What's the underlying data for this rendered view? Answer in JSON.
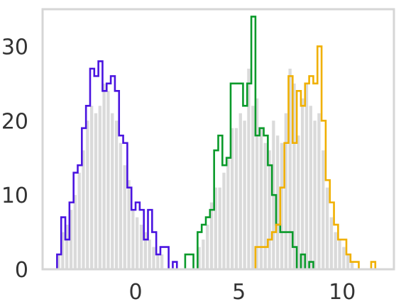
{
  "chart_data": {
    "type": "histogram",
    "title": "",
    "xlabel": "",
    "ylabel": "",
    "xlim": [
      -4.5,
      12.5
    ],
    "ylim": [
      0,
      35
    ],
    "grid": false,
    "x_ticks": [
      0,
      5,
      10
    ],
    "x_tick_labels": [
      "0",
      "5",
      "10"
    ],
    "y_ticks": [
      0,
      10,
      20,
      30
    ],
    "y_tick_labels": [
      "0",
      "10",
      "20",
      "30"
    ],
    "series": [
      {
        "color": "#4a14e0",
        "style": "step-outline",
        "bins": [
          [
            -3.8,
            -3.6,
            2
          ],
          [
            -3.6,
            -3.4,
            7
          ],
          [
            -3.4,
            -3.2,
            4
          ],
          [
            -3.2,
            -3.0,
            9
          ],
          [
            -3.0,
            -2.8,
            13
          ],
          [
            -2.8,
            -2.6,
            14
          ],
          [
            -2.6,
            -2.4,
            19
          ],
          [
            -2.4,
            -2.2,
            22
          ],
          [
            -2.2,
            -2.0,
            27
          ],
          [
            -2.0,
            -1.8,
            26
          ],
          [
            -1.8,
            -1.6,
            28
          ],
          [
            -1.6,
            -1.4,
            24
          ],
          [
            -1.4,
            -1.2,
            25
          ],
          [
            -1.2,
            -1.0,
            26
          ],
          [
            -1.0,
            -0.8,
            24
          ],
          [
            -0.8,
            -0.6,
            18
          ],
          [
            -0.6,
            -0.4,
            17
          ],
          [
            -0.4,
            -0.2,
            11
          ],
          [
            -0.2,
            0.0,
            8
          ],
          [
            0.0,
            0.2,
            9
          ],
          [
            0.2,
            0.4,
            8
          ],
          [
            0.4,
            0.6,
            4
          ],
          [
            0.6,
            0.8,
            8
          ],
          [
            0.8,
            1.0,
            5
          ],
          [
            1.0,
            1.2,
            2
          ],
          [
            1.2,
            1.4,
            3
          ],
          [
            1.4,
            1.6,
            3
          ],
          [
            1.6,
            1.8,
            0
          ],
          [
            1.8,
            2.0,
            1
          ]
        ]
      },
      {
        "color": "#0a9a2a",
        "style": "step-outline",
        "bins": [
          [
            2.4,
            2.6,
            2
          ],
          [
            2.6,
            2.8,
            2
          ],
          [
            2.8,
            3.0,
            0
          ],
          [
            3.0,
            3.2,
            5
          ],
          [
            3.2,
            3.4,
            6
          ],
          [
            3.4,
            3.6,
            7
          ],
          [
            3.6,
            3.8,
            8
          ],
          [
            3.8,
            4.0,
            16
          ],
          [
            4.0,
            4.2,
            18
          ],
          [
            4.2,
            4.4,
            14
          ],
          [
            4.4,
            4.6,
            15
          ],
          [
            4.6,
            4.8,
            25
          ],
          [
            4.8,
            5.0,
            25
          ],
          [
            5.0,
            5.2,
            25
          ],
          [
            5.2,
            5.4,
            22
          ],
          [
            5.4,
            5.6,
            25
          ],
          [
            5.6,
            5.8,
            34
          ],
          [
            5.8,
            6.0,
            18
          ],
          [
            6.0,
            6.2,
            19
          ],
          [
            6.2,
            6.4,
            18
          ],
          [
            6.4,
            6.6,
            14
          ],
          [
            6.6,
            6.8,
            10
          ],
          [
            6.8,
            7.0,
            6
          ],
          [
            7.0,
            7.2,
            5
          ],
          [
            7.2,
            7.4,
            5
          ],
          [
            7.4,
            7.6,
            5
          ],
          [
            7.6,
            7.8,
            3
          ],
          [
            7.8,
            8.0,
            0
          ],
          [
            8.0,
            8.2,
            2
          ],
          [
            8.2,
            8.4,
            0
          ],
          [
            8.4,
            8.6,
            1
          ]
        ]
      },
      {
        "color": "#f0b000",
        "style": "step-outline",
        "bins": [
          [
            5.8,
            6.0,
            3
          ],
          [
            6.0,
            6.2,
            3
          ],
          [
            6.2,
            6.4,
            3
          ],
          [
            6.4,
            6.6,
            4
          ],
          [
            6.6,
            6.8,
            5
          ],
          [
            6.8,
            7.0,
            6
          ],
          [
            7.0,
            7.2,
            11
          ],
          [
            7.2,
            7.4,
            17
          ],
          [
            7.4,
            7.6,
            26
          ],
          [
            7.6,
            7.8,
            17
          ],
          [
            7.8,
            8.0,
            24
          ],
          [
            8.0,
            8.2,
            22
          ],
          [
            8.2,
            8.4,
            25
          ],
          [
            8.4,
            8.6,
            26
          ],
          [
            8.6,
            8.8,
            25
          ],
          [
            8.8,
            9.0,
            30
          ],
          [
            9.0,
            9.2,
            20
          ],
          [
            9.2,
            9.4,
            12
          ],
          [
            9.4,
            9.6,
            9
          ],
          [
            9.6,
            9.8,
            6
          ],
          [
            9.8,
            10.0,
            4
          ],
          [
            10.0,
            10.2,
            4
          ],
          [
            10.2,
            10.4,
            2
          ],
          [
            10.4,
            10.6,
            1
          ],
          [
            10.6,
            10.8,
            1
          ],
          [
            10.8,
            11.0,
            0
          ],
          [
            11.0,
            11.2,
            0
          ],
          [
            11.2,
            11.4,
            0
          ],
          [
            11.4,
            11.6,
            1
          ]
        ]
      },
      {
        "color": "#d3d3d3",
        "style": "filled",
        "bins": [
          [
            -3.8,
            -3.6,
            2
          ],
          [
            -3.6,
            -3.4,
            5
          ],
          [
            -3.4,
            -3.2,
            6
          ],
          [
            -3.2,
            -3.0,
            8
          ],
          [
            -3.0,
            -2.8,
            10
          ],
          [
            -2.8,
            -2.6,
            13
          ],
          [
            -2.6,
            -2.4,
            16
          ],
          [
            -2.4,
            -2.2,
            20
          ],
          [
            -2.2,
            -2.0,
            22
          ],
          [
            -2.0,
            -1.8,
            21
          ],
          [
            -1.8,
            -1.6,
            22
          ],
          [
            -1.6,
            -1.4,
            25
          ],
          [
            -1.4,
            -1.2,
            24
          ],
          [
            -1.2,
            -1.0,
            21
          ],
          [
            -1.0,
            -0.8,
            20
          ],
          [
            -0.8,
            -0.6,
            17
          ],
          [
            -0.6,
            -0.4,
            14
          ],
          [
            -0.4,
            -0.2,
            12
          ],
          [
            -0.2,
            0.0,
            8
          ],
          [
            0.0,
            0.2,
            7
          ],
          [
            0.2,
            0.4,
            6
          ],
          [
            0.4,
            0.6,
            5
          ],
          [
            0.6,
            0.8,
            4
          ],
          [
            0.8,
            1.0,
            3
          ],
          [
            1.0,
            1.2,
            2
          ],
          [
            1.2,
            1.4,
            2
          ],
          [
            3.0,
            3.2,
            3
          ],
          [
            3.2,
            3.4,
            4
          ],
          [
            3.4,
            3.6,
            6
          ],
          [
            3.6,
            3.8,
            9
          ],
          [
            3.8,
            4.0,
            11
          ],
          [
            4.0,
            4.2,
            11
          ],
          [
            4.2,
            4.4,
            13
          ],
          [
            4.4,
            4.6,
            15
          ],
          [
            4.6,
            4.8,
            19
          ],
          [
            4.8,
            5.0,
            19
          ],
          [
            5.0,
            5.2,
            21
          ],
          [
            5.2,
            5.4,
            20
          ],
          [
            5.4,
            5.6,
            27
          ],
          [
            5.6,
            5.8,
            22
          ],
          [
            5.8,
            6.0,
            23
          ],
          [
            6.0,
            6.2,
            19
          ],
          [
            6.2,
            6.4,
            17
          ],
          [
            6.4,
            6.6,
            16
          ],
          [
            6.6,
            6.8,
            20
          ],
          [
            6.8,
            7.0,
            18
          ],
          [
            7.0,
            7.2,
            17
          ],
          [
            7.2,
            7.4,
            21
          ],
          [
            7.4,
            7.6,
            27
          ],
          [
            7.6,
            7.8,
            25
          ],
          [
            7.8,
            8.0,
            18
          ],
          [
            8.0,
            8.2,
            23
          ],
          [
            8.2,
            8.4,
            25
          ],
          [
            8.4,
            8.6,
            22
          ],
          [
            8.6,
            8.8,
            20
          ],
          [
            8.8,
            9.0,
            21
          ],
          [
            9.0,
            9.2,
            16
          ],
          [
            9.2,
            9.4,
            11
          ],
          [
            9.4,
            9.6,
            7
          ],
          [
            9.6,
            9.8,
            5
          ],
          [
            9.8,
            10.0,
            4
          ],
          [
            10.0,
            10.2,
            3
          ],
          [
            10.2,
            10.4,
            2
          ],
          [
            10.4,
            10.6,
            1
          ]
        ]
      }
    ]
  }
}
